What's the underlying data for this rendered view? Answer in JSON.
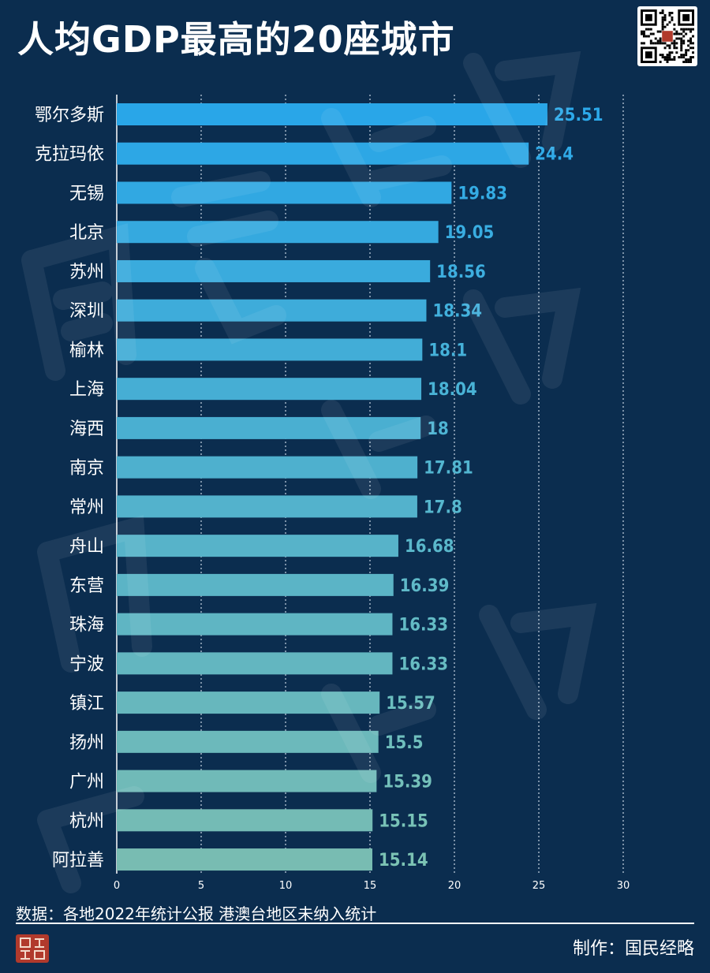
{
  "header": {
    "title": "人均GDP最高的20座城市"
  },
  "chart_data": {
    "type": "bar",
    "orientation": "horizontal",
    "categories": [
      "鄂尔多斯",
      "克拉玛依",
      "无锡",
      "北京",
      "苏州",
      "深圳",
      "榆林",
      "上海",
      "海西",
      "南京",
      "常州",
      "舟山",
      "东营",
      "珠海",
      "宁波",
      "镇江",
      "扬州",
      "广州",
      "杭州",
      "阿拉善"
    ],
    "values": [
      25.51,
      24.4,
      19.83,
      19.05,
      18.56,
      18.34,
      18.1,
      18.04,
      18,
      17.81,
      17.8,
      16.68,
      16.39,
      16.33,
      16.33,
      15.57,
      15.5,
      15.39,
      15.15,
      15.14
    ],
    "value_labels": [
      "25.51",
      "24.4",
      "19.83",
      "19.05",
      "18.56",
      "18.34",
      "18.1",
      "18.04",
      "18",
      "17.81",
      "17.8",
      "16.68",
      "16.39",
      "16.33",
      "16.33",
      "15.57",
      "15.5",
      "15.39",
      "15.15",
      "15.14"
    ],
    "x_ticks": [
      "0",
      "5",
      "10",
      "15",
      "20",
      "25",
      "30"
    ],
    "xlim": [
      0,
      30
    ],
    "grid": "vertical-dotted",
    "colors": {
      "top": "#29a6e8",
      "bottom": "#78bcb2",
      "label_top": "#2ca9ea",
      "label_bottom": "#7cc3b4"
    }
  },
  "footer": {
    "source": "数据：各地2022年统计公报  港澳台地区未纳入统计",
    "credit": "制作：国民经略"
  },
  "icons": {
    "qr": "qr-code-icon",
    "logo": "brand-logo-icon"
  }
}
